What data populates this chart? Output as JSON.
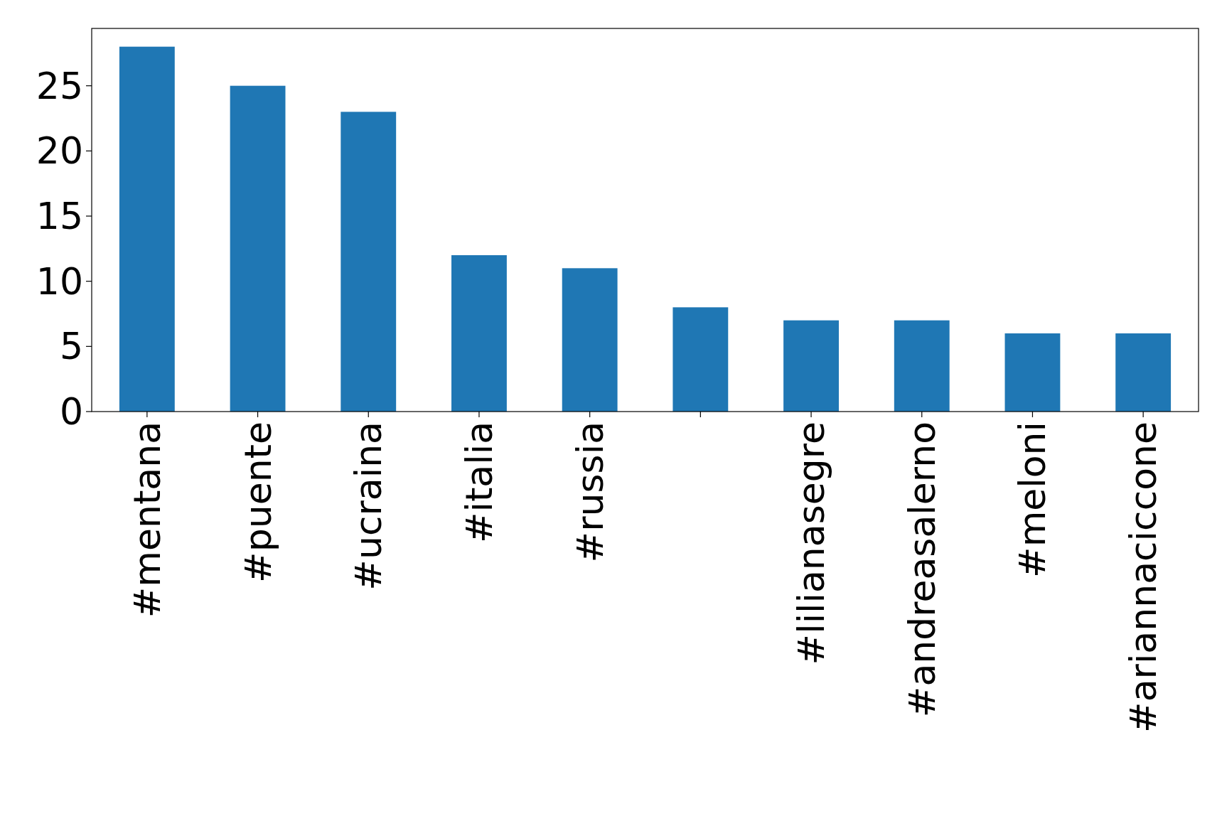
{
  "chart_data": {
    "type": "bar",
    "categories": [
      "#mentana",
      "#puente",
      "#ucraina",
      "#italia",
      "#russia",
      null,
      "#lilianasegre",
      "#andreasalerno",
      "#meloni",
      "#ariannaciccone"
    ],
    "values": [
      28,
      25,
      23,
      12,
      11,
      8,
      7,
      7,
      6,
      6
    ],
    "color": "#1f77b4",
    "ylim": [
      0,
      29.4
    ],
    "yticks": [
      0,
      5,
      10,
      15,
      20,
      25
    ]
  }
}
